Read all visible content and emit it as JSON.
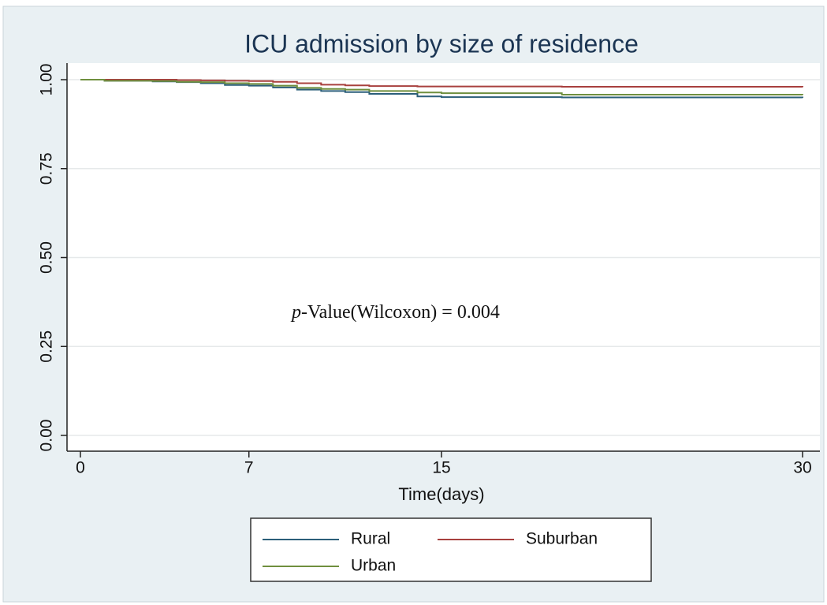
{
  "chart_data": {
    "type": "line",
    "step": true,
    "title": "ICU admission by size of residence",
    "x_label": "Time(days)",
    "annotation": {
      "italic": "p",
      "text": "-Value(Wilcoxon) = 0.004"
    },
    "x": [
      0,
      1,
      3,
      4,
      5,
      6,
      7,
      8,
      9,
      10,
      11,
      12,
      14,
      15,
      20,
      30
    ],
    "series": [
      {
        "name": "Rural",
        "color": "#2c5f7a",
        "values": [
          1.0,
          0.997,
          0.995,
          0.993,
          0.99,
          0.985,
          0.983,
          0.978,
          0.972,
          0.968,
          0.965,
          0.96,
          0.953,
          0.951,
          0.95,
          0.949
        ]
      },
      {
        "name": "Suburban",
        "color": "#a8403e",
        "values": [
          1.0,
          1.0,
          1.0,
          0.999,
          0.998,
          0.997,
          0.996,
          0.994,
          0.99,
          0.986,
          0.984,
          0.982,
          0.981,
          0.981,
          0.98,
          0.979
        ]
      },
      {
        "name": "Urban",
        "color": "#6f8f3e",
        "values": [
          1.0,
          0.997,
          0.996,
          0.994,
          0.993,
          0.99,
          0.988,
          0.983,
          0.977,
          0.974,
          0.972,
          0.968,
          0.964,
          0.962,
          0.958,
          0.957
        ]
      }
    ],
    "xlim": [
      0,
      30
    ],
    "xticks": [
      0,
      7,
      15,
      30
    ],
    "ylim": [
      0,
      1
    ],
    "yticks": [
      {
        "value": 0,
        "label": "0.00"
      },
      {
        "value": 0.25,
        "label": "0.25"
      },
      {
        "value": 0.5,
        "label": "0.50"
      },
      {
        "value": 0.75,
        "label": "0.75"
      },
      {
        "value": 1,
        "label": "1.00"
      }
    ],
    "grid": true,
    "legend": "bottom"
  }
}
